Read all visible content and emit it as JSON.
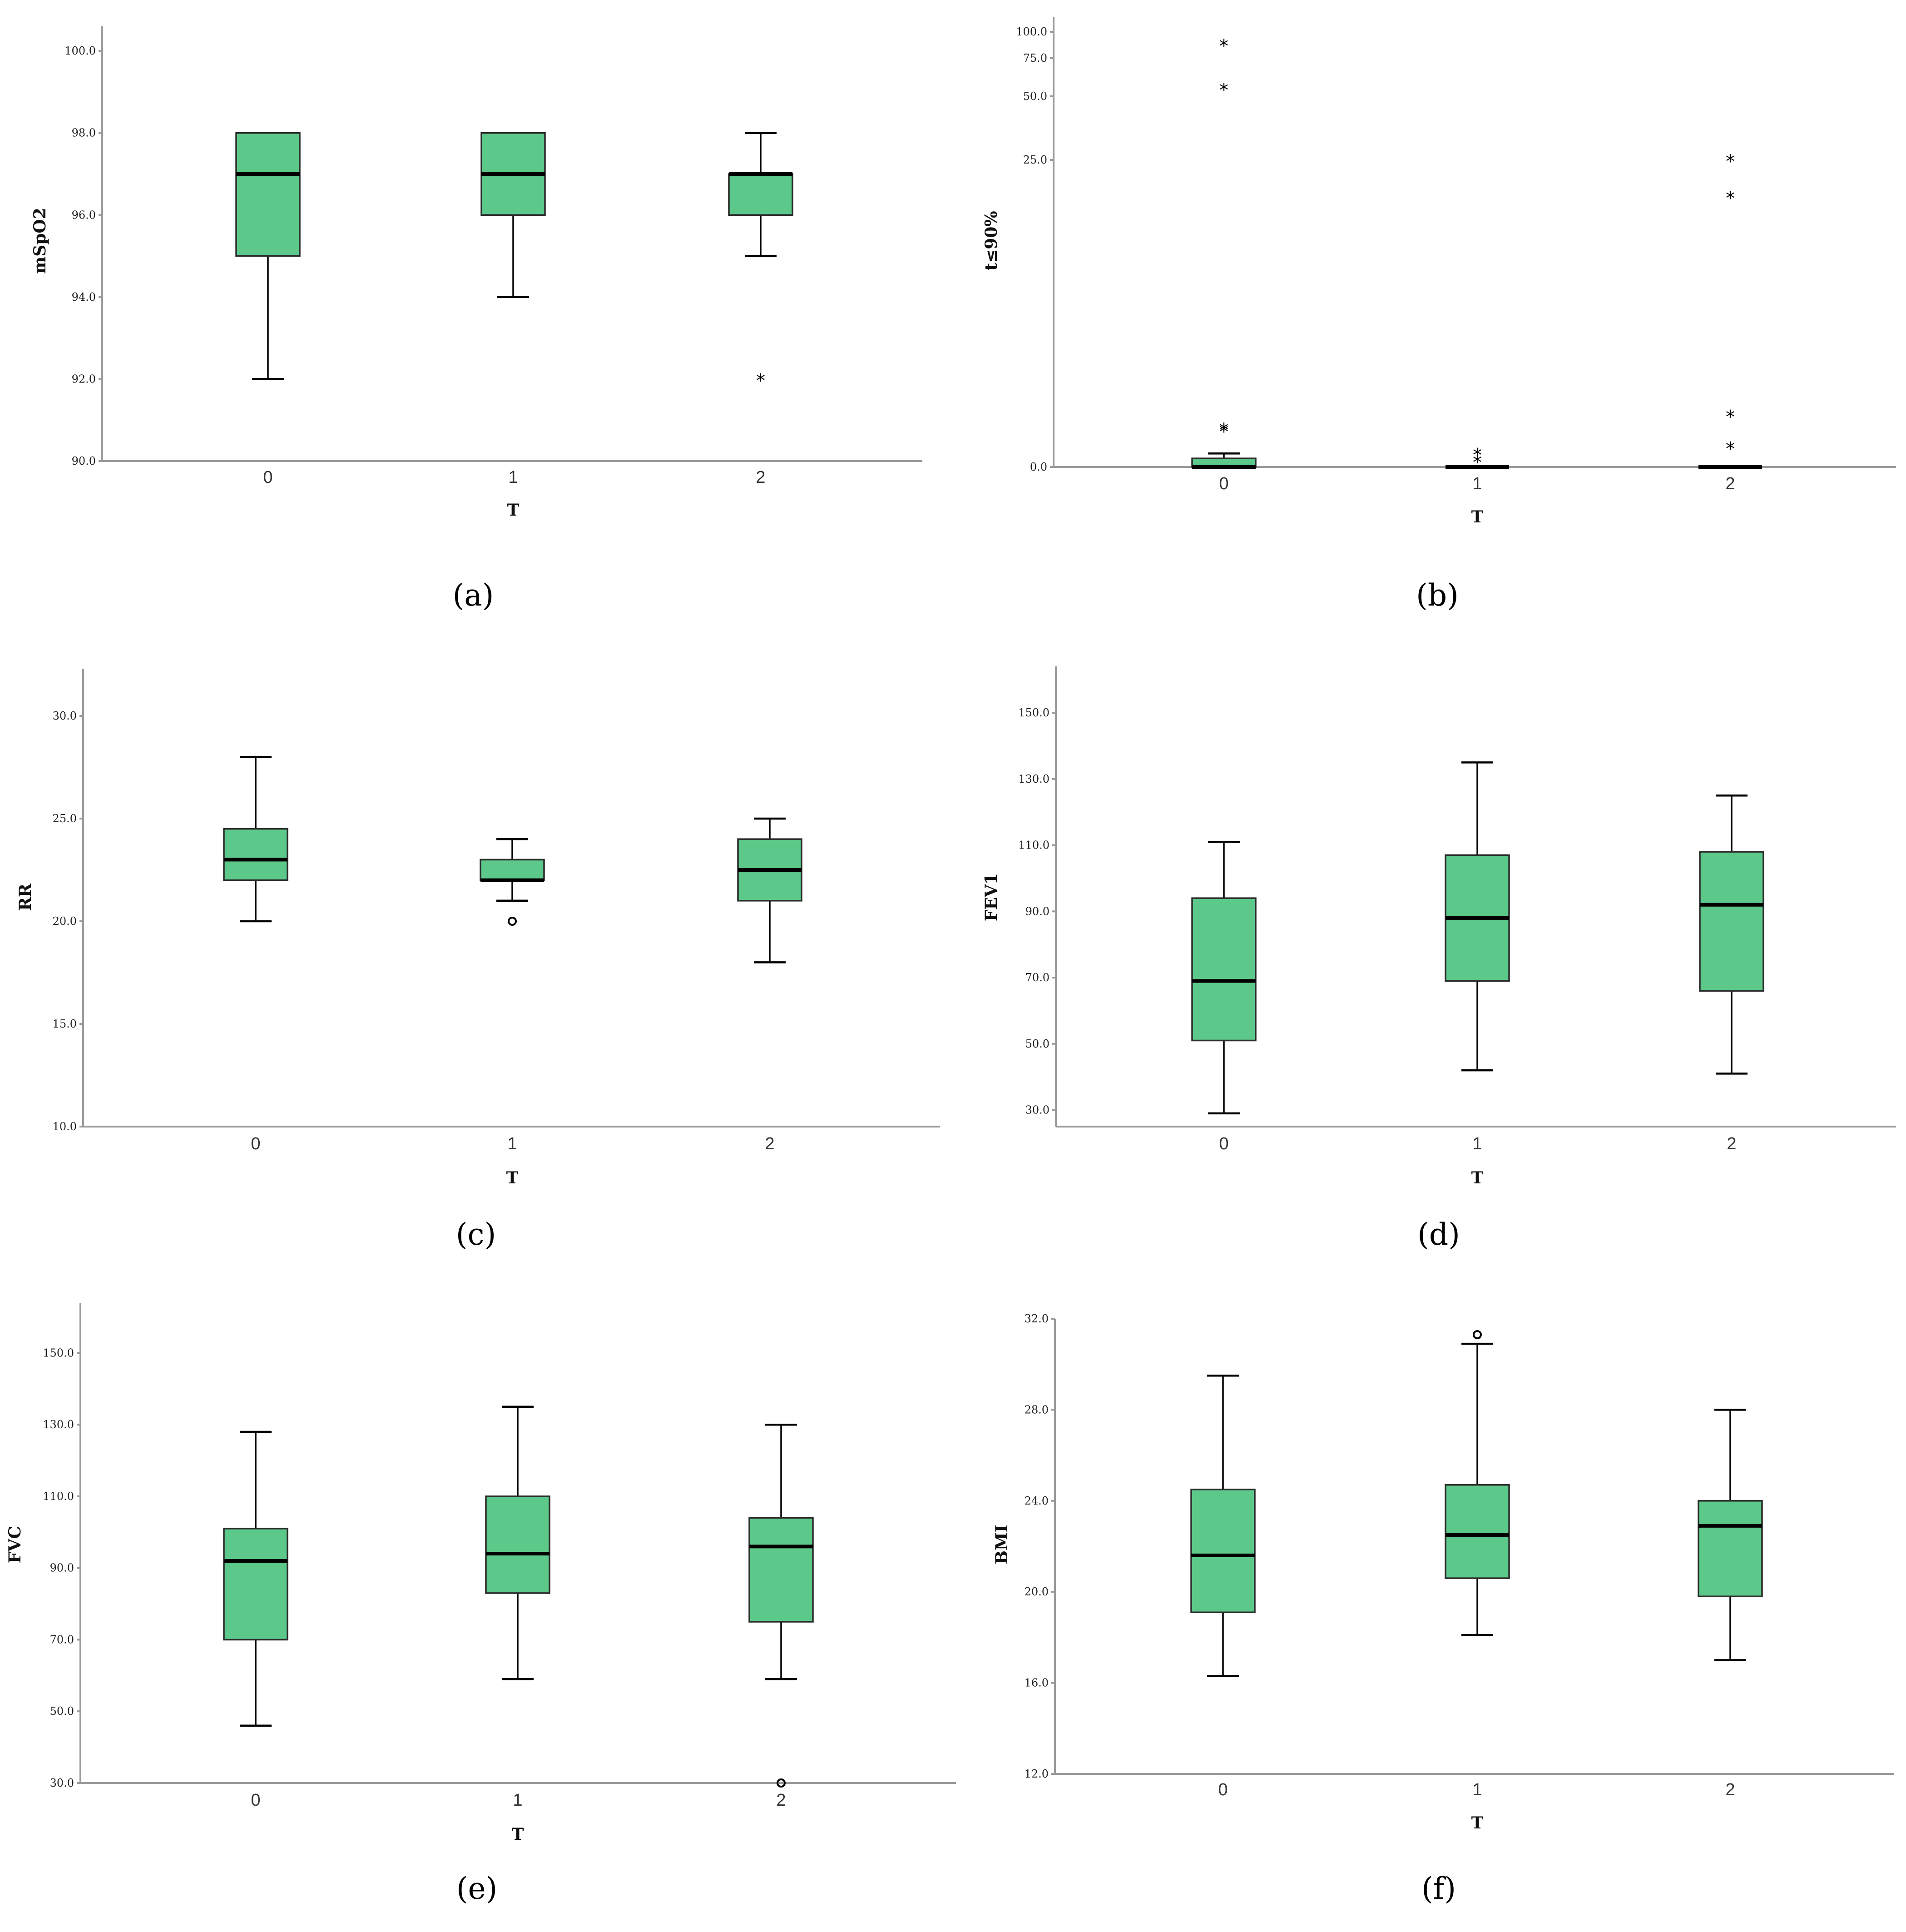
{
  "colors": {
    "box_fill": "#5cc98a",
    "axis": "#9a9a9a",
    "ink": "#000000"
  },
  "chart_data": [
    {
      "type": "box",
      "panel": "(a)",
      "xlabel": "T",
      "ylabel": "mSpO2",
      "categories": [
        "0",
        "1",
        "2"
      ],
      "yticks": [
        {
          "v": 90,
          "label": "90.0"
        },
        {
          "v": 92,
          "label": "92.0"
        },
        {
          "v": 94,
          "label": "94.0"
        },
        {
          "v": 96,
          "label": "96.0"
        },
        {
          "v": 98,
          "label": "98.0"
        },
        {
          "v": 100,
          "label": "100.0"
        }
      ],
      "boxes": [
        {
          "min": 92,
          "q1": 95,
          "median": 97,
          "q3": 98,
          "max": 98,
          "outliers": []
        },
        {
          "min": 94,
          "q1": 96,
          "median": 97,
          "q3": 98,
          "max": 98,
          "outliers": []
        },
        {
          "min": 95,
          "q1": 96,
          "median": 97,
          "q3": 97,
          "max": 98,
          "outliers": [
            {
              "v": 92,
              "marker": "star"
            }
          ]
        }
      ]
    },
    {
      "type": "box",
      "panel": "(b)",
      "xlabel": "T",
      "ylabel": "t≤90%",
      "categories": [
        "0",
        "1",
        "2"
      ],
      "yticks": [
        {
          "v": 0,
          "label": "0.0"
        },
        {
          "v": 25,
          "label": "25.0"
        },
        {
          "v": 50,
          "label": "50.0"
        },
        {
          "v": 75,
          "label": "75.0"
        },
        {
          "v": 100,
          "label": "100.0"
        }
      ],
      "boxes": [
        {
          "min": 0,
          "q1": 0,
          "median": 0,
          "q3": 0.7,
          "max": 1.1,
          "outliers": [
            {
              "v": 3.0,
              "marker": "star"
            },
            {
              "v": 3.15,
              "marker": "star"
            },
            {
              "v": 55,
              "marker": "star"
            },
            {
              "v": 88,
              "marker": "star"
            }
          ]
        },
        {
          "min": 0,
          "q1": 0,
          "median": 0,
          "q3": 0,
          "max": 0,
          "outliers": [
            {
              "v": 0.5,
              "marker": "star"
            },
            {
              "v": 1.1,
              "marker": "star"
            }
          ]
        },
        {
          "min": 0,
          "q1": 0,
          "median": 0,
          "q3": 0,
          "max": 0,
          "outliers": [
            {
              "v": 1.6,
              "marker": "star"
            },
            {
              "v": 4.2,
              "marker": "star"
            },
            {
              "v": 22,
              "marker": "star"
            },
            {
              "v": 25,
              "marker": "star"
            }
          ]
        }
      ]
    },
    {
      "type": "box",
      "panel": "(c)",
      "xlabel": "T",
      "ylabel": "RR",
      "categories": [
        "0",
        "1",
        "2"
      ],
      "yticks": [
        {
          "v": 10,
          "label": "10.0"
        },
        {
          "v": 15,
          "label": "15.0"
        },
        {
          "v": 20,
          "label": "20.0"
        },
        {
          "v": 25,
          "label": "25.0"
        },
        {
          "v": 30,
          "label": "30.0"
        }
      ],
      "boxes": [
        {
          "min": 20,
          "q1": 22,
          "median": 23,
          "q3": 24.5,
          "max": 28,
          "outliers": []
        },
        {
          "min": 21,
          "q1": 22,
          "median": 22,
          "q3": 23,
          "max": 24,
          "outliers": [
            {
              "v": 20,
              "marker": "circle"
            }
          ]
        },
        {
          "min": 18,
          "q1": 21,
          "median": 22.5,
          "q3": 24,
          "max": 25,
          "outliers": []
        }
      ]
    },
    {
      "type": "box",
      "panel": "(d)",
      "xlabel": "T",
      "ylabel": "FEV1",
      "categories": [
        "0",
        "1",
        "2"
      ],
      "yticks": [
        {
          "v": 30,
          "label": "30.0"
        },
        {
          "v": 50,
          "label": "50.0"
        },
        {
          "v": 70,
          "label": "70.0"
        },
        {
          "v": 90,
          "label": "90.0"
        },
        {
          "v": 110,
          "label": "110.0"
        },
        {
          "v": 130,
          "label": "130.0"
        },
        {
          "v": 150,
          "label": "150.0"
        }
      ],
      "boxes": [
        {
          "min": 29,
          "q1": 51,
          "median": 69,
          "q3": 94,
          "max": 111,
          "outliers": []
        },
        {
          "min": 42,
          "q1": 69,
          "median": 88,
          "q3": 107,
          "max": 135,
          "outliers": []
        },
        {
          "min": 41,
          "q1": 66,
          "median": 92,
          "q3": 108,
          "max": 125,
          "outliers": []
        }
      ]
    },
    {
      "type": "box",
      "panel": "(e)",
      "xlabel": "T",
      "ylabel": "FVC",
      "categories": [
        "0",
        "1",
        "2"
      ],
      "yticks": [
        {
          "v": 30,
          "label": "30.0"
        },
        {
          "v": 50,
          "label": "50.0"
        },
        {
          "v": 70,
          "label": "70.0"
        },
        {
          "v": 90,
          "label": "90.0"
        },
        {
          "v": 110,
          "label": "110.0"
        },
        {
          "v": 130,
          "label": "130.0"
        },
        {
          "v": 150,
          "label": "150.0"
        }
      ],
      "boxes": [
        {
          "min": 46,
          "q1": 70,
          "median": 92,
          "q3": 101,
          "max": 128,
          "outliers": []
        },
        {
          "min": 59,
          "q1": 83,
          "median": 94,
          "q3": 110,
          "max": 135,
          "outliers": []
        },
        {
          "min": 59,
          "q1": 75,
          "median": 96,
          "q3": 104,
          "max": 130,
          "outliers": [
            {
              "v": 30,
              "marker": "circle"
            }
          ]
        }
      ]
    },
    {
      "type": "box",
      "panel": "(f)",
      "xlabel": "T",
      "ylabel": "BMI",
      "categories": [
        "0",
        "1",
        "2"
      ],
      "yticks": [
        {
          "v": 12,
          "label": "12.0"
        },
        {
          "v": 16,
          "label": "16.0"
        },
        {
          "v": 20,
          "label": "20.0"
        },
        {
          "v": 24,
          "label": "24.0"
        },
        {
          "v": 28,
          "label": "28.0"
        },
        {
          "v": 32,
          "label": "32.0"
        }
      ],
      "boxes": [
        {
          "min": 16.3,
          "q1": 19.1,
          "median": 21.6,
          "q3": 24.5,
          "max": 29.5,
          "outliers": []
        },
        {
          "min": 18.1,
          "q1": 20.6,
          "median": 22.5,
          "q3": 24.7,
          "max": 30.9,
          "outliers": [
            {
              "v": 31.3,
              "marker": "circle"
            }
          ]
        },
        {
          "min": 17.0,
          "q1": 19.8,
          "median": 22.9,
          "q3": 24.0,
          "max": 28.0,
          "outliers": []
        }
      ]
    }
  ]
}
